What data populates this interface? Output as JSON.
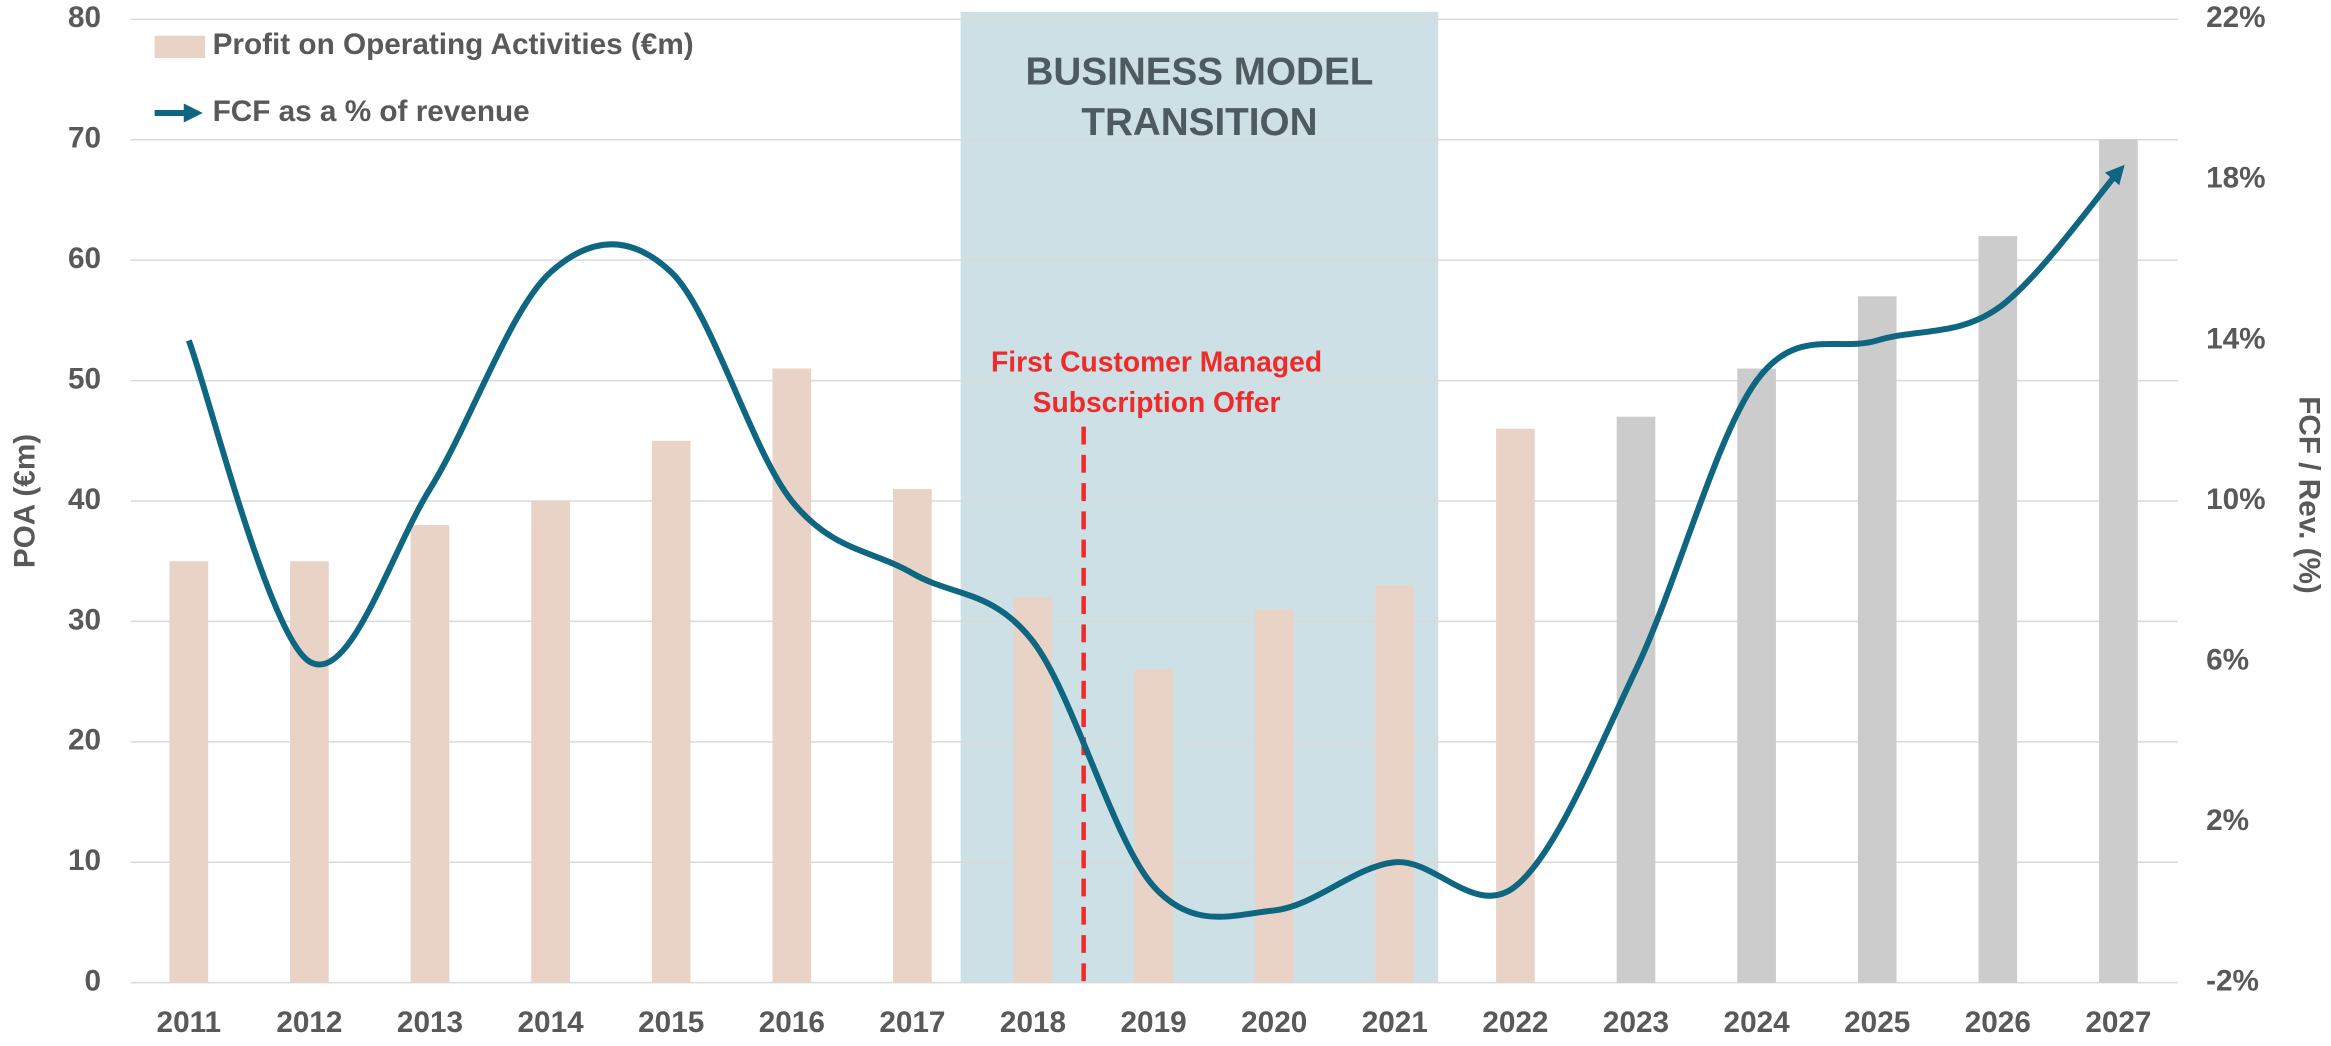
{
  "chart_data": {
    "type": "bar",
    "categories": [
      "2011",
      "2012",
      "2013",
      "2014",
      "2015",
      "2016",
      "2017",
      "2018",
      "2019",
      "2020",
      "2021",
      "2022",
      "2023",
      "2024",
      "2025",
      "2026",
      "2027"
    ],
    "series": [
      {
        "name": "Profit on Operating Activities (€m)",
        "type": "bar",
        "color": "#e8d3c6",
        "colors": [
          "#e8d3c6",
          "#e8d3c6",
          "#e8d3c6",
          "#e8d3c6",
          "#e8d3c6",
          "#e8d3c6",
          "#e8d3c6",
          "#e8d3c6",
          "#e8d3c6",
          "#e8d3c6",
          "#e8d3c6",
          "#e8d3c6",
          "#cccccc",
          "#cccccc",
          "#cccccc",
          "#cccccc",
          "#cccccc"
        ],
        "values": [
          35,
          35,
          38,
          40,
          45,
          51,
          41,
          32,
          26,
          31,
          33,
          46,
          47,
          51,
          57,
          62,
          70
        ]
      },
      {
        "name": "FCF as a % of revenue",
        "type": "line",
        "axis": "y2",
        "color": "#0e6680",
        "values": [
          14,
          6,
          10.3,
          15.7,
          15.7,
          10,
          8.2,
          6.5,
          0.4,
          -0.2,
          1,
          0.4,
          5.8,
          13,
          14,
          14.8,
          18.2
        ]
      }
    ],
    "ylabel": "POA (€m)",
    "y2label": "FCF / Rev. (%)",
    "ylim": [
      0,
      80
    ],
    "yticks": [
      0,
      10,
      20,
      30,
      40,
      50,
      60,
      70,
      80
    ],
    "y2lim": [
      -2,
      22
    ],
    "y2ticks": [
      {
        "value": -2,
        "label": "-2%"
      },
      {
        "value": 2,
        "label": "2%"
      },
      {
        "value": 6,
        "label": "6%"
      },
      {
        "value": 10,
        "label": "10%"
      },
      {
        "value": 14,
        "label": "14%"
      },
      {
        "value": 18,
        "label": "18%"
      },
      {
        "value": 22,
        "label": "22%"
      }
    ],
    "grid": true,
    "legend": "upper left",
    "annotations": {
      "region": {
        "label": [
          "BUSINESS MODEL",
          "TRANSITION"
        ],
        "color": "#cde0e6"
      },
      "marker": {
        "label": [
          "First Customer Managed",
          "Subscription Offer"
        ],
        "color": "#ee2a2a"
      }
    }
  }
}
